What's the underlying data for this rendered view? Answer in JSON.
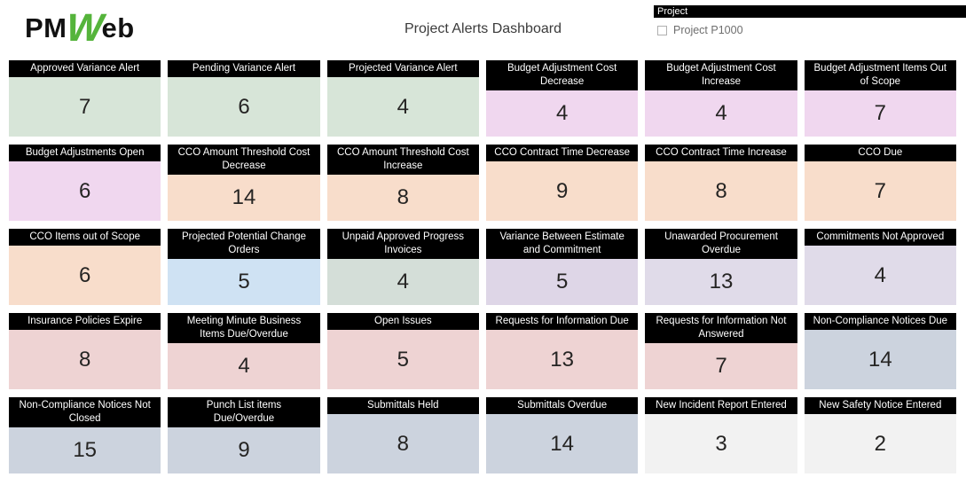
{
  "logo": {
    "pm": "PM",
    "w": "W",
    "eb": "eb",
    "green": "#55b43b",
    "black": "#111111"
  },
  "header": {
    "title": "Project Alerts Dashboard"
  },
  "slicer": {
    "title": "Project",
    "options": [
      {
        "label": "Project P1000",
        "checked": false
      }
    ]
  },
  "card_style": {
    "header_bg": "#000000",
    "header_text": "#ffffff",
    "value_color": "#252423"
  },
  "cards": [
    {
      "title": "Approved Variance Alert",
      "value": "7",
      "color": "#d7e5d8"
    },
    {
      "title": "Pending Variance Alert",
      "value": "6",
      "color": "#d7e5d8"
    },
    {
      "title": "Projected Variance Alert",
      "value": "4",
      "color": "#d7e5d8"
    },
    {
      "title": "Budget Adjustment Cost Decrease",
      "value": "4",
      "color": "#f0d7ef"
    },
    {
      "title": "Budget Adjustment Cost Increase",
      "value": "4",
      "color": "#f0d7ef"
    },
    {
      "title": "Budget Adjustment Items Out of Scope",
      "value": "7",
      "color": "#f0d7ef"
    },
    {
      "title": "Budget Adjustments Open",
      "value": "6",
      "color": "#f0d7ef"
    },
    {
      "title": "CCO Amount Threshold Cost Decrease",
      "value": "14",
      "color": "#f8ddcb"
    },
    {
      "title": "CCO Amount Threshold Cost Increase",
      "value": "8",
      "color": "#f8ddcb"
    },
    {
      "title": "CCO Contract Time Decrease",
      "value": "9",
      "color": "#f8ddcb"
    },
    {
      "title": "CCO Contract Time Increase",
      "value": "8",
      "color": "#f8ddcb"
    },
    {
      "title": "CCO Due",
      "value": "7",
      "color": "#f8ddcb"
    },
    {
      "title": "CCO Items out of Scope",
      "value": "6",
      "color": "#f8ddcb"
    },
    {
      "title": "Projected Potential Change Orders",
      "value": "5",
      "color": "#cfe2f3"
    },
    {
      "title": "Unpaid Approved Progress Invoices",
      "value": "4",
      "color": "#d4ded8"
    },
    {
      "title": "Variance Between Estimate and Commitment",
      "value": "5",
      "color": "#ded6e7"
    },
    {
      "title": "Unawarded Procurement Overdue",
      "value": "13",
      "color": "#e0dbe9"
    },
    {
      "title": "Commitments Not Approved",
      "value": "4",
      "color": "#e0dbe9"
    },
    {
      "title": "Insurance Policies Expire",
      "value": "8",
      "color": "#eed3d3"
    },
    {
      "title": "Meeting Minute Business Items Due/Overdue",
      "value": "4",
      "color": "#eed3d3"
    },
    {
      "title": "Open Issues",
      "value": "5",
      "color": "#eed3d3"
    },
    {
      "title": "Requests for Information Due",
      "value": "13",
      "color": "#eed3d3"
    },
    {
      "title": "Requests for Information Not Answered",
      "value": "7",
      "color": "#eed3d3"
    },
    {
      "title": "Non-Compliance Notices Due",
      "value": "14",
      "color": "#ccd3de"
    },
    {
      "title": "Non-Compliance Notices Not Closed",
      "value": "15",
      "color": "#ccd3de"
    },
    {
      "title": "Punch List items Due/Overdue",
      "value": "9",
      "color": "#ccd3de"
    },
    {
      "title": "Submittals Held",
      "value": "8",
      "color": "#ccd3de"
    },
    {
      "title": "Submittals Overdue",
      "value": "14",
      "color": "#ccd3de"
    },
    {
      "title": "New Incident Report Entered",
      "value": "3",
      "color": "#f2f2f2"
    },
    {
      "title": "New Safety Notice Entered",
      "value": "2",
      "color": "#f2f2f2"
    }
  ]
}
